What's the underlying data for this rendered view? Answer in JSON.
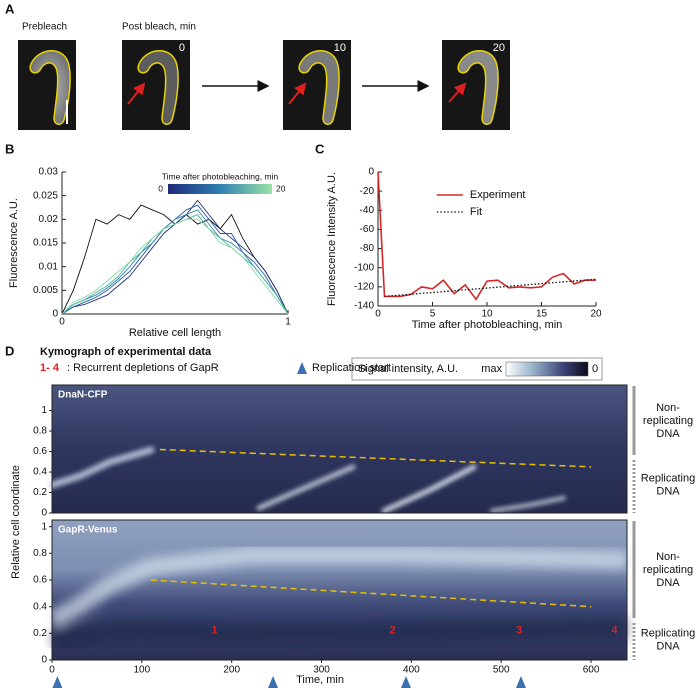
{
  "panel_a": {
    "panel": "A",
    "labels": [
      "Prebleach",
      "Post bleach, min"
    ],
    "timepoints": [
      0,
      10,
      20
    ]
  },
  "chart_data": [
    {
      "type": "line",
      "panel": "B",
      "xlabel": "Relative cell length",
      "ylabel": "Fluorescence A.U.",
      "xlim": [
        0,
        1
      ],
      "ylim": [
        0,
        0.03
      ],
      "xticks": [
        0,
        1
      ],
      "yticks": [
        0,
        0.005,
        0.01,
        0.015,
        0.02,
        0.025,
        0.03
      ],
      "colorbar": {
        "label": "Time after photobleaching, min",
        "ticks": [
          0,
          20
        ],
        "colors": [
          "#1f2a78",
          "#2f7fb0",
          "#9be3a8"
        ]
      },
      "x": [
        0,
        0.05,
        0.1,
        0.15,
        0.2,
        0.25,
        0.3,
        0.35,
        0.4,
        0.45,
        0.5,
        0.55,
        0.6,
        0.65,
        0.7,
        0.75,
        0.8,
        0.85,
        0.9,
        0.95,
        1
      ],
      "series": [
        {
          "color": "#111111",
          "values": [
            0,
            0.005,
            0.012,
            0.02,
            0.019,
            0.021,
            0.02,
            0.023,
            0.022,
            0.021,
            0.019,
            0.021,
            0.019,
            0.02,
            0.018,
            0.021,
            0.016,
            0.012,
            0.009,
            0.005,
            0
          ]
        },
        {
          "color": "#23307f",
          "values": [
            0,
            0.0015,
            0.002,
            0.003,
            0.004,
            0.006,
            0.008,
            0.011,
            0.014,
            0.017,
            0.019,
            0.021,
            0.024,
            0.021,
            0.018,
            0.016,
            0.014,
            0.012,
            0.009,
            0.005,
            0
          ]
        },
        {
          "color": "#2b5aa3",
          "values": [
            0,
            0.0015,
            0.0025,
            0.0035,
            0.005,
            0.007,
            0.009,
            0.012,
            0.015,
            0.018,
            0.02,
            0.022,
            0.023,
            0.02,
            0.017,
            0.017,
            0.013,
            0.011,
            0.008,
            0.004,
            0
          ]
        },
        {
          "color": "#2f88b2",
          "values": [
            0,
            0.002,
            0.003,
            0.004,
            0.0055,
            0.0075,
            0.01,
            0.013,
            0.015,
            0.018,
            0.02,
            0.021,
            0.022,
            0.019,
            0.016,
            0.015,
            0.013,
            0.01,
            0.007,
            0.004,
            0
          ]
        },
        {
          "color": "#45b3a6",
          "values": [
            0,
            0.002,
            0.003,
            0.0045,
            0.006,
            0.008,
            0.011,
            0.013,
            0.016,
            0.018,
            0.019,
            0.02,
            0.021,
            0.018,
            0.016,
            0.014,
            0.012,
            0.01,
            0.007,
            0.004,
            0
          ]
        },
        {
          "color": "#86dca0",
          "values": [
            0,
            0.0025,
            0.0035,
            0.005,
            0.007,
            0.009,
            0.011,
            0.014,
            0.016,
            0.018,
            0.019,
            0.02,
            0.02,
            0.018,
            0.015,
            0.014,
            0.012,
            0.009,
            0.006,
            0.003,
            0
          ]
        }
      ]
    },
    {
      "type": "line",
      "panel": "C",
      "xlabel": "Time after photobleaching, min",
      "ylabel": "Fluorescence Intensity A.U.",
      "xlim": [
        0,
        20
      ],
      "ylim": [
        -140,
        0
      ],
      "xticks": [
        0,
        5,
        10,
        15,
        20
      ],
      "yticks": [
        0,
        -20,
        -40,
        -60,
        -80,
        -100,
        -120,
        -140
      ],
      "legend": "upper right",
      "series": [
        {
          "name": "Experiment",
          "color": "#d62728",
          "style": "solid",
          "x": [
            0,
            0.6,
            2,
            3,
            4,
            5,
            6,
            7,
            8,
            9,
            10,
            11,
            12,
            13,
            14,
            15,
            16,
            17,
            18,
            19,
            20
          ],
          "values": [
            0,
            -130,
            -130,
            -128,
            -120,
            -122,
            -113,
            -127,
            -118,
            -133,
            -114,
            -113,
            -121,
            -120,
            -121,
            -120,
            -110,
            -106,
            -117,
            -113,
            -113
          ]
        },
        {
          "name": "Fit",
          "color": "#111111",
          "style": "dotted",
          "x": [
            0.6,
            20
          ],
          "values": [
            -130,
            -112
          ]
        }
      ]
    },
    {
      "type": "kymograph",
      "panel": "D",
      "title": "Kymograph of experimental data",
      "annotation": {
        "range": "1- 4",
        "text": ": Recurrent depletions of GapR"
      },
      "marker_label": "Replication start",
      "colorbar": {
        "label": "Signal intensity, A.U.",
        "ticks": [
          "max",
          0
        ]
      },
      "xlabel": "Time, min",
      "ylabel": "Relative cell coordinate",
      "xlim": [
        0,
        640
      ],
      "xticks": [
        0,
        100,
        200,
        300,
        400,
        500,
        600
      ],
      "replication_starts": [
        6,
        246,
        394,
        522
      ],
      "regions": [
        [
          "Non-",
          "replicating",
          "DNA"
        ],
        [
          "Replicating",
          "DNA"
        ]
      ],
      "panels": [
        {
          "name": "DnaN-CFP",
          "ylim": [
            0,
            1.25
          ],
          "yticks": [
            0,
            0.2,
            0.4,
            0.6,
            0.8,
            1
          ],
          "fit_line": {
            "x": [
              120,
              600
            ],
            "values": [
              0.62,
              0.45
            ]
          },
          "depletions": []
        },
        {
          "name": "GapR-Venus",
          "ylim": [
            0,
            1.05
          ],
          "yticks": [
            0,
            0.2,
            0.4,
            0.6,
            0.8,
            1
          ],
          "fit_line": {
            "x": [
              110,
              600
            ],
            "values": [
              0.6,
              0.4
            ]
          },
          "depletions": [
            {
              "label": "1",
              "x": 181,
              "y": 0.22
            },
            {
              "label": "2",
              "x": 379,
              "y": 0.22
            },
            {
              "label": "3",
              "x": 520,
              "y": 0.22
            },
            {
              "label": "4",
              "x": 626,
              "y": 0.22
            }
          ]
        }
      ]
    }
  ]
}
